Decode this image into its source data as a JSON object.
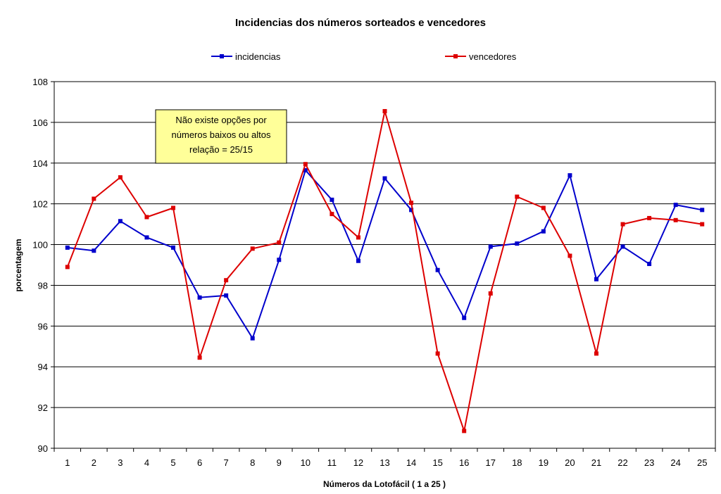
{
  "chart_data": {
    "type": "line",
    "title": "Incidencias dos números sorteados e vencedores",
    "xlabel": "Números da Lotofácil ( 1 a 25 )",
    "ylabel": "porcentagem",
    "x": [
      1,
      2,
      3,
      4,
      5,
      6,
      7,
      8,
      9,
      10,
      11,
      12,
      13,
      14,
      15,
      16,
      17,
      18,
      19,
      20,
      21,
      22,
      23,
      24,
      25
    ],
    "ylim": [
      90,
      108
    ],
    "yticks": [
      90,
      92,
      94,
      96,
      98,
      100,
      102,
      104,
      106,
      108
    ],
    "grid": true,
    "legend": "top",
    "series": [
      {
        "name": "incidencias",
        "color": "#0000cc",
        "values": [
          99.85,
          99.7,
          101.15,
          100.35,
          99.85,
          97.4,
          97.5,
          95.4,
          99.25,
          103.65,
          102.2,
          99.2,
          103.25,
          101.7,
          98.75,
          96.4,
          99.9,
          100.05,
          100.65,
          103.4,
          98.3,
          99.9,
          99.05,
          101.95,
          101.7
        ]
      },
      {
        "name": "vencedores",
        "color": "#dd0000",
        "values": [
          98.9,
          102.25,
          103.3,
          101.35,
          101.8,
          94.45,
          98.25,
          99.8,
          100.1,
          103.95,
          101.5,
          100.35,
          106.55,
          102.05,
          94.65,
          90.85,
          97.6,
          102.35,
          101.8,
          99.45,
          94.65,
          101.0,
          101.3,
          101.2,
          101.0
        ]
      }
    ],
    "annotation": {
      "lines": [
        "Não existe opções por",
        "números baixos ou altos",
        "relação = 25/15"
      ],
      "fill": "#ffff99"
    }
  }
}
